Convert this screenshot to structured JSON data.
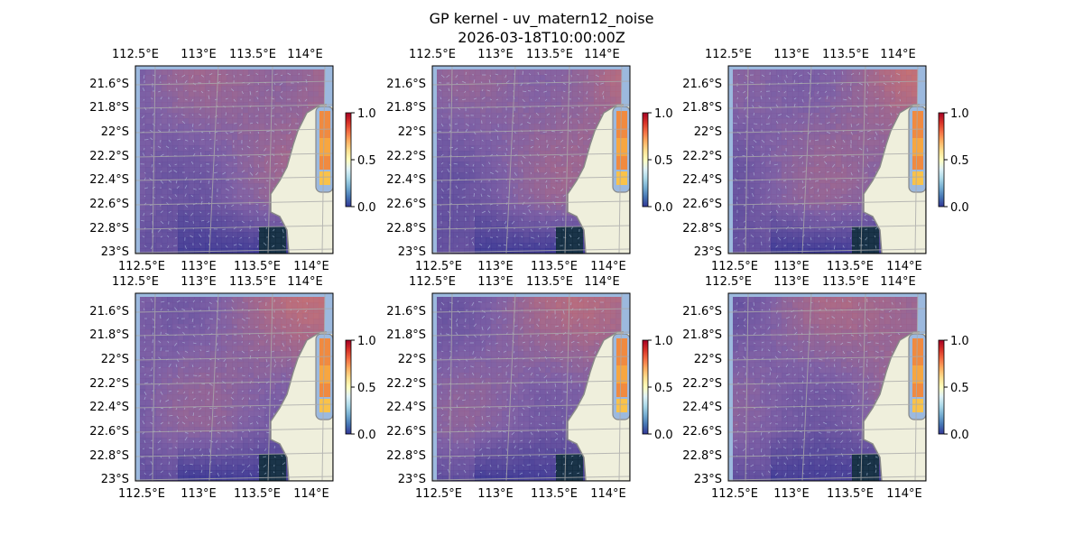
{
  "title": "GP kernel - uv_matern12_noise",
  "subtitle": "2026-03-18T10:00:00Z",
  "lon_ticks": [
    "112.5°E",
    "113°E",
    "113.5°E",
    "114°E"
  ],
  "lat_ticks": [
    "21.6°S",
    "21.8°S",
    "22°S",
    "22.2°S",
    "22.4°S",
    "22.6°S",
    "22.8°S",
    "23°S"
  ],
  "colorbar": {
    "ticks": [
      "1.0",
      "0.5",
      "0.0"
    ],
    "range": [
      0,
      1
    ],
    "colormap": "RdYlBu_r"
  },
  "colors": {
    "land": "#efefdc",
    "ocean": "#9cb9de",
    "gridline": "#aaaaaa",
    "coast": "#888888"
  },
  "panels": [
    {
      "id": "panel-1"
    },
    {
      "id": "panel-2"
    },
    {
      "id": "panel-3"
    },
    {
      "id": "panel-4"
    },
    {
      "id": "panel-5"
    },
    {
      "id": "panel-6"
    }
  ]
}
